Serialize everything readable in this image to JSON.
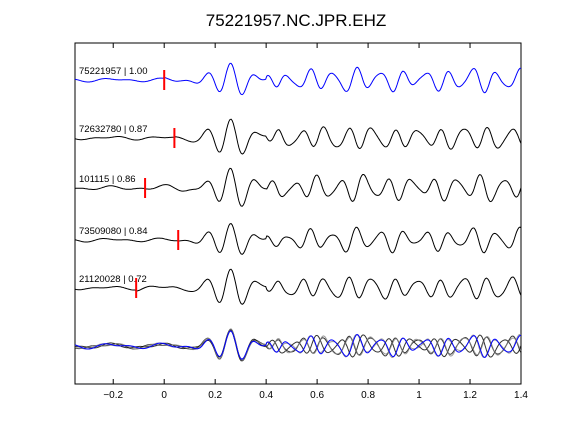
{
  "chart_data": {
    "type": "line",
    "title": "75221957.NC.JPR.EHZ",
    "xlabel": "",
    "ylabel": "",
    "xlim": [
      -0.35,
      1.4
    ],
    "xticks": [
      -0.2,
      0,
      0.2,
      0.4,
      0.6,
      0.8,
      1,
      1.2,
      1.4
    ],
    "xtick_labels": [
      "−0.2",
      "0",
      "0.2",
      "0.4",
      "0.6",
      "0.8",
      "1",
      "1.2",
      "1.4"
    ],
    "grid": false,
    "colors": {
      "master": "#0000ff",
      "trace": "#000000",
      "pick": "#ff0000",
      "overlay": "#808080"
    },
    "series": [
      {
        "name": "75221957 | 1.00",
        "pick_time": 0.0
      },
      {
        "name": "72632780 | 0.87",
        "pick_time": 0.04
      },
      {
        "name": "101115 | 0.86",
        "pick_time": -0.075
      },
      {
        "name": "73509080 | 0.84",
        "pick_time": 0.055
      },
      {
        "name": "21120028 | 0.72",
        "pick_time": -0.11
      }
    ],
    "overlay": "stacked overlay of all aligned traces at bottom"
  }
}
